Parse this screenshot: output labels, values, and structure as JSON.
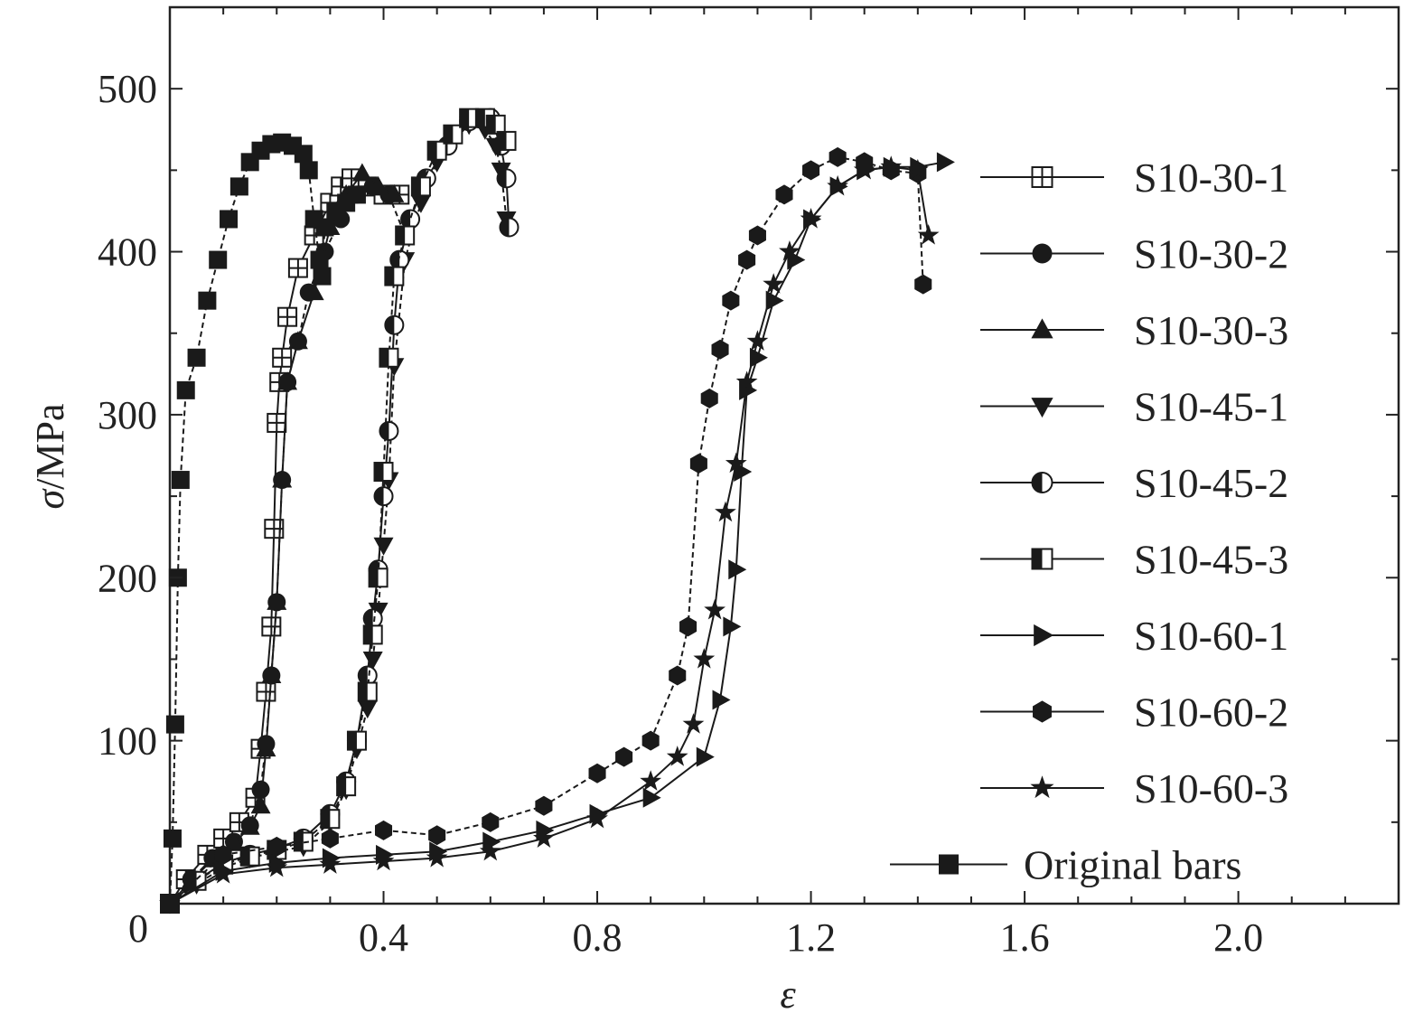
{
  "chart_data": {
    "type": "line",
    "title": "",
    "xlabel": "ε",
    "ylabel_symbol": "σ",
    "ylabel_unit": "/MPa",
    "xlim": [
      0,
      2.3
    ],
    "ylim": [
      0,
      550
    ],
    "x_ticks": [
      0.4,
      0.8,
      1.2,
      1.6,
      2.0
    ],
    "x_tick_labels": [
      "0.4",
      "0.8",
      "1.2",
      "1.6",
      "2.0"
    ],
    "y_ticks": [
      100,
      200,
      300,
      400,
      500
    ],
    "y_tick_labels": [
      "100",
      "200",
      "300",
      "400",
      "500"
    ],
    "origin_label": "0",
    "grid": false,
    "legend_position": "right",
    "series": [
      {
        "name": "S10-30-1",
        "marker": "square-plus",
        "x": [
          0,
          0.03,
          0.07,
          0.1,
          0.13,
          0.16,
          0.17,
          0.18,
          0.19,
          0.195,
          0.2,
          0.205,
          0.21,
          0.22,
          0.24,
          0.27,
          0.3,
          0.32,
          0.34,
          0.37,
          0.4,
          0.43
        ],
        "y": [
          0,
          15,
          30,
          40,
          50,
          65,
          95,
          130,
          170,
          230,
          295,
          320,
          335,
          360,
          390,
          410,
          430,
          440,
          445,
          440,
          435,
          435
        ]
      },
      {
        "name": "S10-30-2",
        "marker": "circle",
        "x": [
          0,
          0.04,
          0.08,
          0.12,
          0.15,
          0.17,
          0.18,
          0.19,
          0.2,
          0.21,
          0.22,
          0.24,
          0.26,
          0.29,
          0.32,
          0.35,
          0.38,
          0.41,
          0.44
        ],
        "y": [
          0,
          15,
          28,
          38,
          48,
          70,
          98,
          140,
          185,
          260,
          320,
          345,
          375,
          400,
          420,
          435,
          440,
          435,
          410
        ]
      },
      {
        "name": "S10-30-3",
        "marker": "triangle-up",
        "x": [
          0,
          0.04,
          0.08,
          0.12,
          0.15,
          0.17,
          0.18,
          0.19,
          0.2,
          0.21,
          0.22,
          0.24,
          0.27,
          0.3,
          0.33,
          0.36,
          0.39,
          0.42
        ],
        "y": [
          0,
          14,
          27,
          37,
          47,
          60,
          95,
          140,
          185,
          260,
          320,
          345,
          375,
          415,
          435,
          448,
          440,
          435
        ]
      },
      {
        "name": "S10-45-1",
        "marker": "triangle-down",
        "x": [
          0,
          0.05,
          0.1,
          0.15,
          0.2,
          0.25,
          0.3,
          0.33,
          0.35,
          0.37,
          0.38,
          0.39,
          0.4,
          0.41,
          0.42,
          0.44,
          0.47,
          0.5,
          0.53,
          0.56,
          0.59,
          0.61,
          0.62,
          0.63
        ],
        "y": [
          0,
          12,
          22,
          28,
          32,
          35,
          50,
          70,
          95,
          120,
          150,
          180,
          220,
          260,
          330,
          395,
          430,
          455,
          468,
          478,
          475,
          465,
          450,
          420
        ]
      },
      {
        "name": "S10-45-2",
        "marker": "circle-half",
        "x": [
          0,
          0.05,
          0.1,
          0.15,
          0.2,
          0.25,
          0.3,
          0.33,
          0.35,
          0.37,
          0.38,
          0.39,
          0.4,
          0.41,
          0.42,
          0.43,
          0.45,
          0.48,
          0.52,
          0.56,
          0.6,
          0.62,
          0.63,
          0.635
        ],
        "y": [
          0,
          14,
          25,
          30,
          34,
          40,
          55,
          75,
          100,
          140,
          175,
          205,
          250,
          290,
          355,
          395,
          420,
          445,
          465,
          480,
          482,
          465,
          445,
          415
        ]
      },
      {
        "name": "S10-45-3",
        "marker": "square-half",
        "x": [
          0,
          0.05,
          0.1,
          0.15,
          0.2,
          0.25,
          0.3,
          0.33,
          0.35,
          0.37,
          0.38,
          0.39,
          0.4,
          0.41,
          0.42,
          0.44,
          0.47,
          0.5,
          0.53,
          0.56,
          0.59,
          0.61,
          0.63
        ],
        "y": [
          0,
          14,
          24,
          29,
          33,
          38,
          52,
          72,
          100,
          130,
          165,
          200,
          265,
          335,
          385,
          410,
          440,
          462,
          472,
          482,
          482,
          478,
          468
        ]
      },
      {
        "name": "S10-60-1",
        "marker": "triangle-right",
        "x": [
          0,
          0.1,
          0.2,
          0.3,
          0.4,
          0.5,
          0.6,
          0.7,
          0.8,
          0.9,
          1.0,
          1.03,
          1.05,
          1.06,
          1.07,
          1.08,
          1.1,
          1.13,
          1.17,
          1.2,
          1.25,
          1.3,
          1.35,
          1.4,
          1.45
        ],
        "y": [
          0,
          20,
          25,
          28,
          30,
          32,
          38,
          45,
          55,
          65,
          90,
          125,
          170,
          205,
          265,
          315,
          335,
          370,
          395,
          420,
          440,
          450,
          452,
          452,
          455
        ]
      },
      {
        "name": "S10-60-2",
        "marker": "hexagon",
        "x": [
          0,
          0.1,
          0.2,
          0.3,
          0.4,
          0.5,
          0.6,
          0.7,
          0.8,
          0.85,
          0.9,
          0.95,
          0.97,
          0.99,
          1.01,
          1.03,
          1.05,
          1.08,
          1.1,
          1.15,
          1.2,
          1.25,
          1.3,
          1.35,
          1.4,
          1.41
        ],
        "y": [
          0,
          30,
          35,
          40,
          45,
          42,
          50,
          60,
          80,
          90,
          100,
          140,
          170,
          270,
          310,
          340,
          370,
          395,
          410,
          435,
          450,
          458,
          455,
          450,
          448,
          380
        ]
      },
      {
        "name": "S10-60-3",
        "marker": "star",
        "x": [
          0,
          0.1,
          0.2,
          0.3,
          0.4,
          0.5,
          0.6,
          0.7,
          0.8,
          0.9,
          0.95,
          0.98,
          1.0,
          1.02,
          1.04,
          1.06,
          1.08,
          1.1,
          1.13,
          1.16,
          1.2,
          1.25,
          1.3,
          1.35,
          1.4,
          1.42
        ],
        "y": [
          0,
          18,
          22,
          24,
          26,
          28,
          32,
          40,
          52,
          75,
          90,
          110,
          150,
          180,
          240,
          270,
          320,
          345,
          380,
          400,
          420,
          440,
          450,
          452,
          450,
          410
        ]
      },
      {
        "name": "Original bars",
        "marker": "square",
        "x": [
          0,
          0.005,
          0.01,
          0.015,
          0.02,
          0.03,
          0.05,
          0.07,
          0.09,
          0.11,
          0.13,
          0.15,
          0.17,
          0.19,
          0.21,
          0.23,
          0.25,
          0.26,
          0.27,
          0.28,
          0.285,
          0.29,
          0.31,
          0.33,
          0.35
        ],
        "y": [
          0,
          40,
          110,
          200,
          260,
          315,
          335,
          370,
          395,
          420,
          440,
          455,
          462,
          466,
          467,
          465,
          460,
          450,
          420,
          395,
          385,
          415,
          425,
          430,
          435
        ]
      }
    ]
  }
}
